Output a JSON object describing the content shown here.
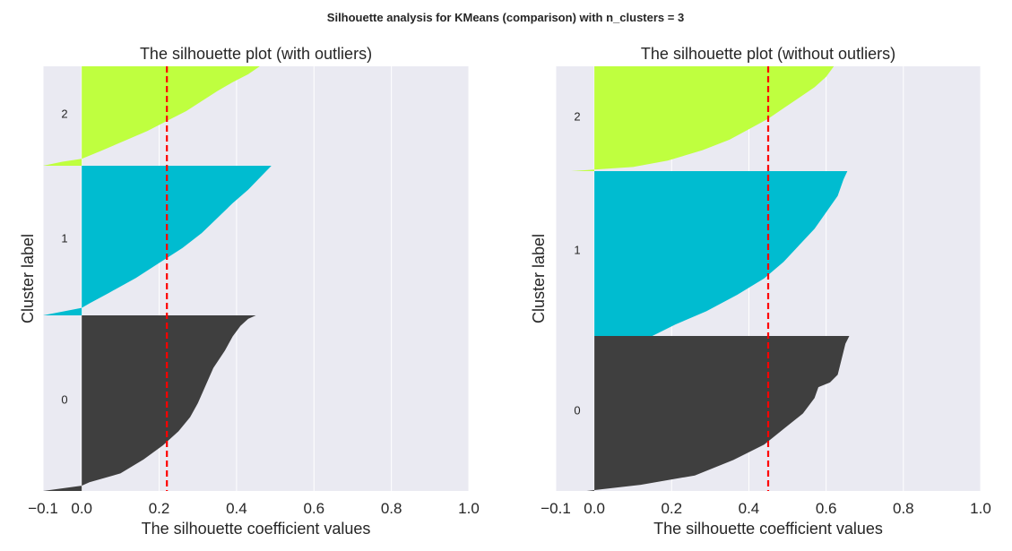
{
  "figure": {
    "suptitle": "Silhouette analysis for KMeans (comparison) with n_clusters = 3",
    "background": "#eaeaf2",
    "grid_color": "#ffffff",
    "avg_line_color": "#ff0000"
  },
  "chart_data": [
    {
      "type": "area",
      "title": "The silhouette plot (with outliers)",
      "xlabel": "The silhouette coefficient values",
      "ylabel": "Cluster label",
      "xlim": [
        -0.1,
        1.0
      ],
      "x_ticks": [
        -0.1,
        0.0,
        0.2,
        0.4,
        0.6,
        0.8,
        1.0
      ],
      "x_tick_labels": [
        "−0.1",
        "0.0",
        "0.2",
        "0.4",
        "0.6",
        "0.8",
        "1.0"
      ],
      "grid": "vertical",
      "silhouette_avg": 0.22,
      "series": [
        {
          "label": "0",
          "color": "#3f3f3f",
          "profile": [
            [
              0,
              0.45
            ],
            [
              0.02,
              0.43
            ],
            [
              0.06,
              0.41
            ],
            [
              0.12,
              0.39
            ],
            [
              0.2,
              0.37
            ],
            [
              0.3,
              0.34
            ],
            [
              0.4,
              0.32
            ],
            [
              0.5,
              0.3
            ],
            [
              0.58,
              0.28
            ],
            [
              0.66,
              0.25
            ],
            [
              0.74,
              0.21
            ],
            [
              0.82,
              0.16
            ],
            [
              0.9,
              0.1
            ],
            [
              0.95,
              0.02
            ],
            [
              0.97,
              0.0
            ],
            [
              1.0,
              -0.1
            ]
          ]
        },
        {
          "label": "1",
          "color": "#00bcd0",
          "profile": [
            [
              0,
              0.49
            ],
            [
              0.08,
              0.46
            ],
            [
              0.16,
              0.43
            ],
            [
              0.25,
              0.39
            ],
            [
              0.35,
              0.35
            ],
            [
              0.45,
              0.31
            ],
            [
              0.55,
              0.26
            ],
            [
              0.65,
              0.2
            ],
            [
              0.75,
              0.14
            ],
            [
              0.85,
              0.07
            ],
            [
              0.92,
              0.02
            ],
            [
              0.95,
              0.0
            ],
            [
              1.0,
              -0.1
            ]
          ]
        },
        {
          "label": "2",
          "color": "#bfff3f",
          "profile": [
            [
              0,
              0.46
            ],
            [
              0.08,
              0.43
            ],
            [
              0.16,
              0.39
            ],
            [
              0.25,
              0.35
            ],
            [
              0.35,
              0.31
            ],
            [
              0.45,
              0.27
            ],
            [
              0.55,
              0.22
            ],
            [
              0.65,
              0.17
            ],
            [
              0.75,
              0.11
            ],
            [
              0.85,
              0.05
            ],
            [
              0.93,
              0.0
            ],
            [
              0.96,
              -0.05
            ],
            [
              1.0,
              -0.1
            ]
          ]
        }
      ]
    },
    {
      "type": "area",
      "title": "The silhouette plot (without outliers)",
      "xlabel": "The silhouette coefficient values",
      "ylabel": "Cluster label",
      "xlim": [
        -0.1,
        1.0
      ],
      "x_ticks": [
        -0.1,
        0.0,
        0.2,
        0.4,
        0.6,
        0.8,
        1.0
      ],
      "x_tick_labels": [
        "−0.1",
        "0.0",
        "0.2",
        "0.4",
        "0.6",
        "0.8",
        "1.0"
      ],
      "grid": "vertical",
      "silhouette_avg": 0.45,
      "series": [
        {
          "label": "0",
          "color": "#3f3f3f",
          "profile": [
            [
              0,
              0.66
            ],
            [
              0.05,
              0.65
            ],
            [
              0.15,
              0.64
            ],
            [
              0.25,
              0.63
            ],
            [
              0.3,
              0.61
            ],
            [
              0.33,
              0.58
            ],
            [
              0.4,
              0.57
            ],
            [
              0.5,
              0.54
            ],
            [
              0.6,
              0.49
            ],
            [
              0.7,
              0.44
            ],
            [
              0.8,
              0.36
            ],
            [
              0.9,
              0.26
            ],
            [
              0.96,
              0.12
            ],
            [
              1.0,
              -0.02
            ]
          ]
        },
        {
          "label": "1",
          "color": "#00bcd0",
          "profile": [
            [
              0,
              0.655
            ],
            [
              0.05,
              0.645
            ],
            [
              0.15,
              0.63
            ],
            [
              0.25,
              0.6
            ],
            [
              0.35,
              0.57
            ],
            [
              0.45,
              0.53
            ],
            [
              0.55,
              0.49
            ],
            [
              0.65,
              0.44
            ],
            [
              0.75,
              0.37
            ],
            [
              0.85,
              0.29
            ],
            [
              0.93,
              0.21
            ],
            [
              1.0,
              0.15
            ]
          ]
        },
        {
          "label": "2",
          "color": "#bfff3f",
          "profile": [
            [
              0,
              0.62
            ],
            [
              0.1,
              0.6
            ],
            [
              0.2,
              0.57
            ],
            [
              0.3,
              0.53
            ],
            [
              0.4,
              0.49
            ],
            [
              0.5,
              0.45
            ],
            [
              0.6,
              0.4
            ],
            [
              0.7,
              0.35
            ],
            [
              0.8,
              0.28
            ],
            [
              0.9,
              0.19
            ],
            [
              0.96,
              0.1
            ],
            [
              1.0,
              -0.06
            ]
          ]
        }
      ]
    }
  ]
}
